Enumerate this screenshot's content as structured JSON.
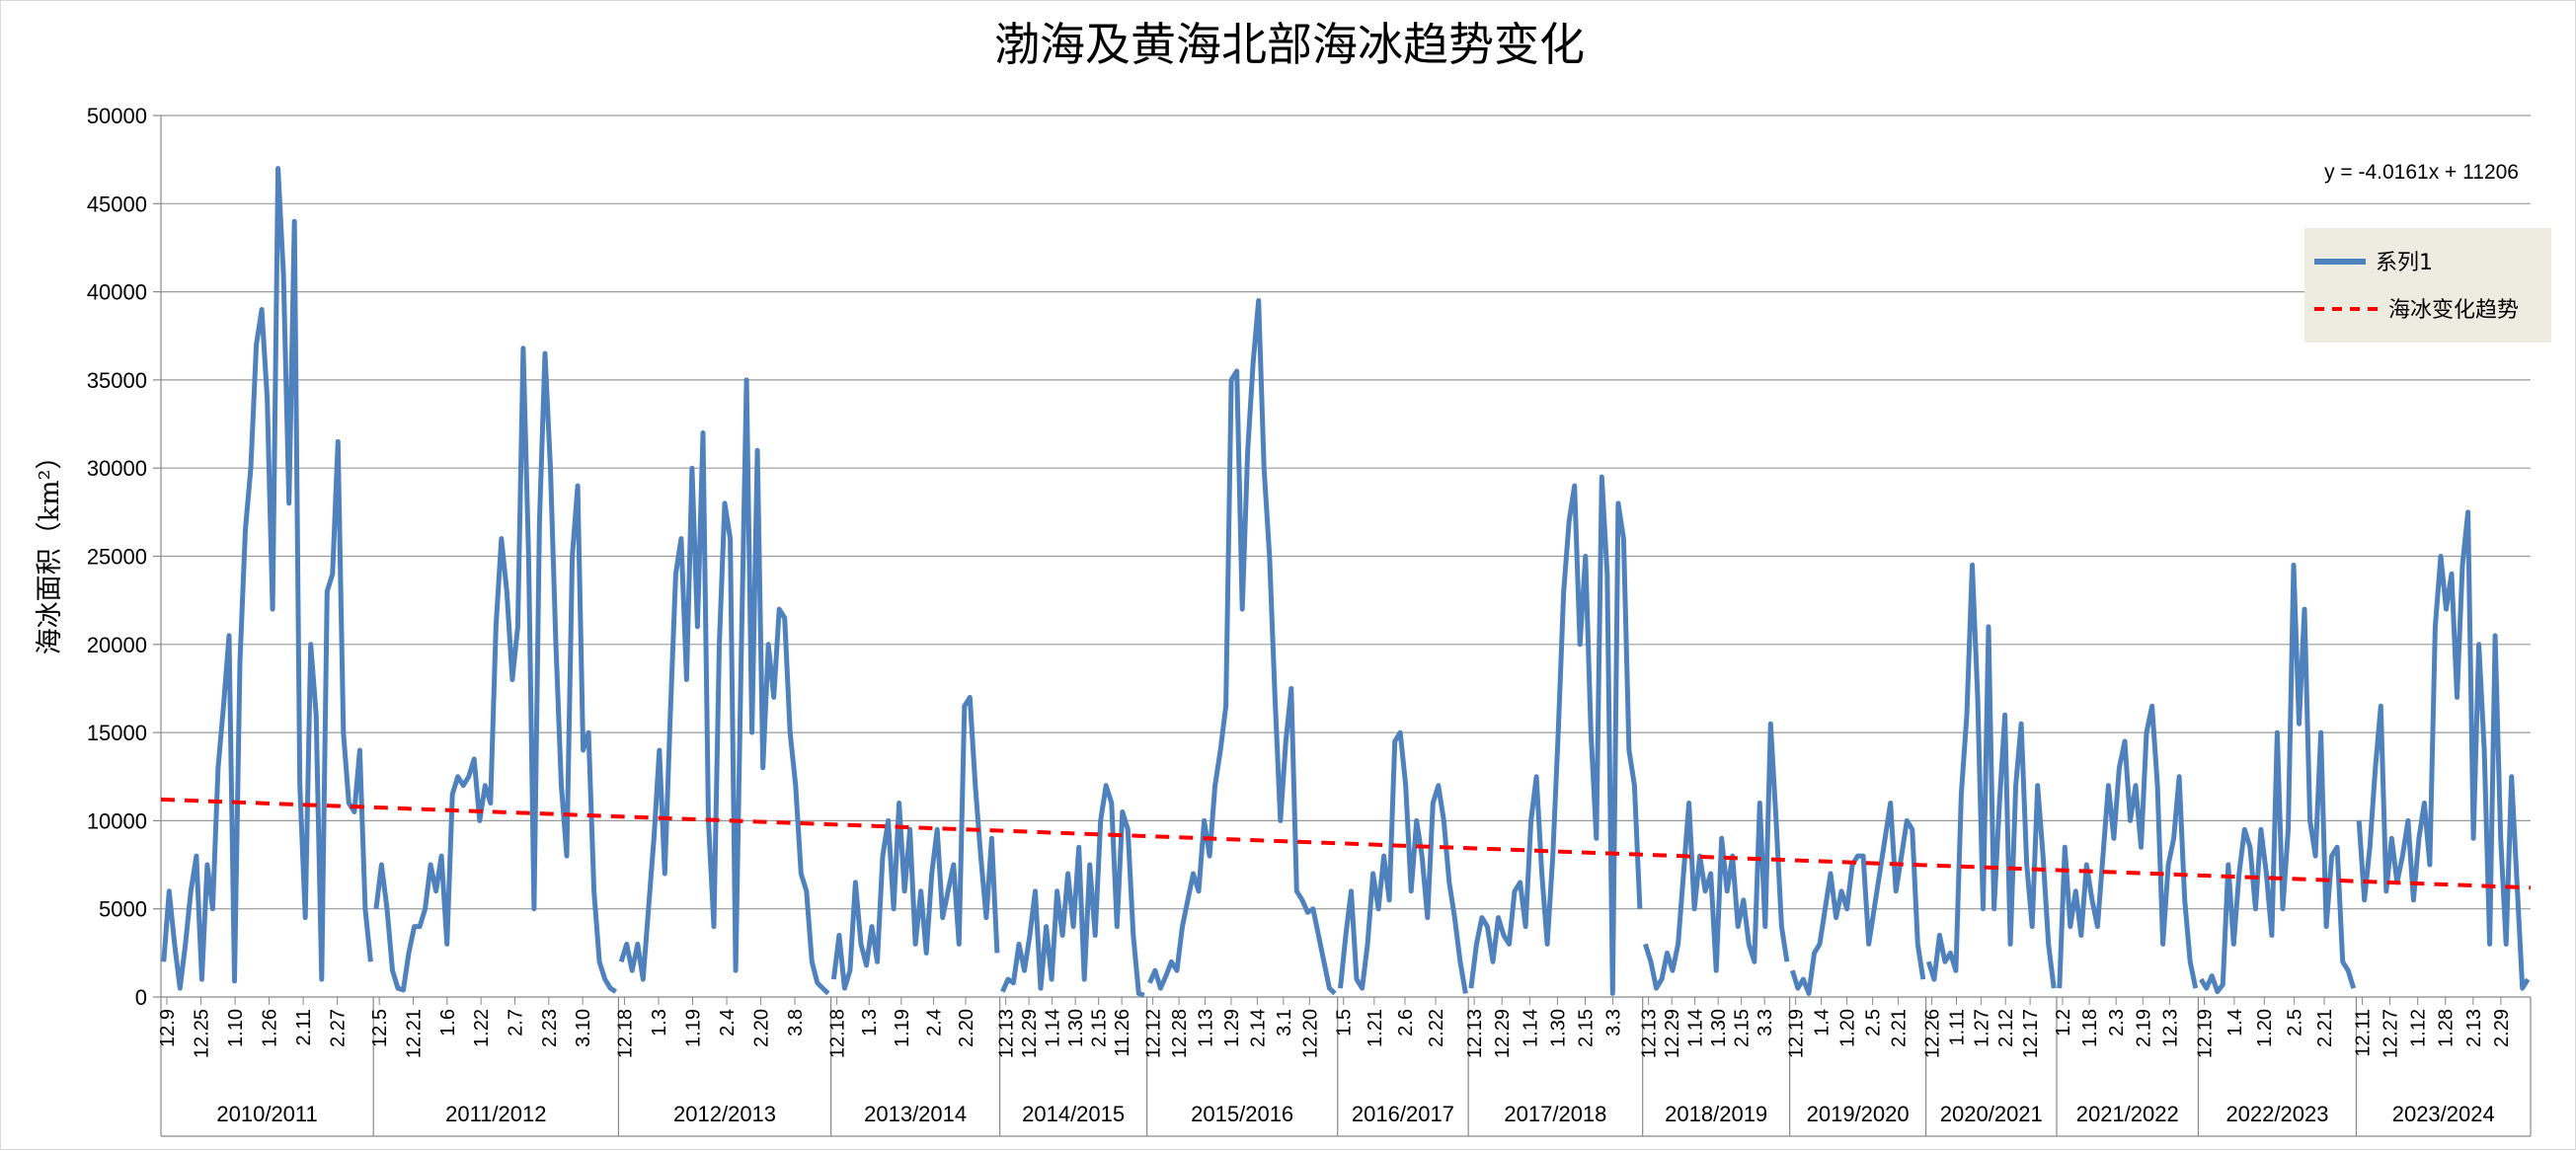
{
  "chart_data": {
    "type": "line",
    "title": "渤海及黄海北部海冰趋势变化",
    "xlabel": "",
    "ylabel": "海冰面积（km²）",
    "ylim": [
      0,
      50000
    ],
    "yticks": [
      0,
      5000,
      10000,
      15000,
      20000,
      25000,
      30000,
      35000,
      40000,
      45000,
      50000
    ],
    "grid": true,
    "legend_position": "right",
    "colors": {
      "series": "#4f81bd",
      "trend": "#ff0000",
      "legend_bg": "#eeece1"
    },
    "series": [
      {
        "name": "系列1",
        "segments": [
          {
            "season": "2010/2011",
            "points": [
              2000,
              6000,
              3000,
              500,
              3000,
              6000,
              8000,
              1000,
              7500,
              5000,
              13000,
              16500,
              20500,
              900,
              19000,
              26500,
              30000,
              37000,
              39000,
              34000,
              22000,
              47000,
              41000,
              28000,
              44000,
              12000,
              4500,
              20000,
              16000,
              1000,
              23000,
              24000,
              31500,
              15000,
              11000,
              10500,
              14000,
              5000,
              2000
            ]
          },
          {
            "season": "2011/2012",
            "points": [
              5000,
              7500,
              5000,
              1500,
              500,
              400,
              2500,
              4000,
              4000,
              5000,
              7500,
              6000,
              8000,
              3000,
              11500,
              12500,
              12000,
              12500,
              13500,
              10000,
              12000,
              11000,
              21000,
              26000,
              23000,
              18000,
              21000,
              36800,
              25000,
              5000,
              27000,
              36500,
              30000,
              20000,
              12000,
              8000,
              25000,
              29000,
              14000,
              15000,
              6000,
              2000,
              1000,
              500,
              300
            ]
          },
          {
            "season": "2012/2013",
            "points": [
              2000,
              3000,
              1500,
              3000,
              1000,
              5000,
              9000,
              14000,
              7000,
              16000,
              24000,
              26000,
              18000,
              30000,
              21000,
              32000,
              10000,
              4000,
              20000,
              28000,
              26000,
              1500,
              19000,
              35000,
              15000,
              31000,
              13000,
              20000,
              17000,
              22000,
              21500,
              15000,
              12000,
              7000,
              6000,
              2000,
              800,
              500,
              200
            ]
          },
          {
            "season": "2013/2014",
            "points": [
              1000,
              3500,
              500,
              1500,
              6500,
              3000,
              1800,
              4000,
              2000,
              8000,
              10000,
              5000,
              11000,
              6000,
              9500,
              3000,
              6000,
              2500,
              7000,
              9500,
              4500,
              6000,
              7500,
              3000,
              16500,
              17000,
              12000,
              8000,
              4500,
              9000,
              2500
            ]
          },
          {
            "season": "2014/2015",
            "points": [
              300,
              1000,
              800,
              3000,
              1500,
              3500,
              6000,
              500,
              4000,
              1000,
              6000,
              3500,
              7000,
              4000,
              8500,
              1000,
              7500,
              3500,
              10000,
              12000,
              11000,
              4000,
              10500,
              9500,
              3500,
              200,
              100
            ]
          },
          {
            "season": "2015/2016",
            "points": [
              800,
              1500,
              500,
              1200,
              2000,
              1500,
              4000,
              5500,
              7000,
              6000,
              10000,
              8000,
              12000,
              14000,
              16500,
              35000,
              35500,
              22000,
              31000,
              36000,
              39500,
              30000,
              25000,
              17000,
              10000,
              14500,
              17500,
              6000,
              5500,
              4800,
              5000,
              3500,
              2000,
              500,
              200
            ]
          },
          {
            "season": "2016/2017",
            "points": [
              500,
              3500,
              6000,
              1000,
              500,
              3000,
              7000,
              5000,
              8000,
              5500,
              14500,
              15000,
              12000,
              6000,
              10000,
              8000,
              4500,
              11000,
              12000,
              10000,
              6500,
              4500,
              2000,
              200
            ]
          },
          {
            "season": "2017/2018",
            "points": [
              500,
              3000,
              4500,
              4000,
              2000,
              4500,
              3500,
              3000,
              6000,
              6500,
              4000,
              10000,
              12500,
              7000,
              3000,
              8000,
              15000,
              23000,
              27000,
              29000,
              20000,
              25000,
              15000,
              9000,
              29500,
              24000,
              200,
              28000,
              26000,
              14000,
              12000,
              5000
            ]
          },
          {
            "season": "2018/2019",
            "points": [
              3000,
              2000,
              500,
              1000,
              2500,
              1500,
              3000,
              7000,
              11000,
              5000,
              8000,
              6000,
              7000,
              1500,
              9000,
              6000,
              8000,
              4000,
              5500,
              3000,
              2000,
              11000,
              4000,
              15500,
              10000,
              4000,
              2000
            ]
          },
          {
            "season": "2019/2020",
            "points": [
              1500,
              500,
              1000,
              200,
              2500,
              3000,
              5000,
              7000,
              4500,
              6000,
              5000,
              7500,
              8000,
              8000,
              3000,
              5000,
              7000,
              9000,
              11000,
              6000,
              8000,
              10000,
              9500,
              3000,
              1000
            ]
          },
          {
            "season": "2020/2021",
            "points": [
              2000,
              1000,
              3500,
              2000,
              2500,
              1500,
              11500,
              16000,
              24500,
              17000,
              5000,
              21000,
              5000,
              11000,
              16000,
              3000,
              12000,
              15500,
              7500,
              4000,
              12000,
              8000,
              3000,
              500
            ]
          },
          {
            "season": "2021/2022",
            "points": [
              500,
              8500,
              4000,
              6000,
              3500,
              7500,
              5500,
              4000,
              8000,
              12000,
              9000,
              13000,
              14500,
              10000,
              12000,
              8500,
              15000,
              16500,
              12000,
              3000,
              7500,
              9000,
              12500,
              5500,
              2000,
              500
            ]
          },
          {
            "season": "2022/2023",
            "points": [
              1000,
              500,
              1200,
              300,
              700,
              7500,
              3000,
              7000,
              9500,
              8500,
              5000,
              9500,
              7000,
              3500,
              15000,
              5000,
              9500,
              24500,
              15500,
              22000,
              10000,
              8000,
              15000,
              4000,
              8000,
              8500,
              2000,
              1500,
              500
            ]
          },
          {
            "season": "2023/2024",
            "points": [
              10000,
              5500,
              8500,
              13000,
              16500,
              6000,
              9000,
              6500,
              8000,
              10000,
              5500,
              9000,
              11000,
              7500,
              21000,
              25000,
              22000,
              24000,
              17000,
              24500,
              27500,
              9000,
              20000,
              14000,
              3000,
              20500,
              9000,
              3000,
              12500,
              6500,
              500,
              1000
            ]
          }
        ]
      },
      {
        "name": "海冰变化趋势",
        "type": "trendline",
        "style": "dashed",
        "equation": "y = -4.0161x + 11206",
        "start": 11206,
        "end": 6200
      }
    ],
    "x_ticks": [
      {
        "season": "2010/2011",
        "labels": [
          "12.9",
          "12.25",
          "1.10",
          "1.26",
          "2.11",
          "2.27"
        ]
      },
      {
        "season": "2011/2012",
        "labels": [
          "12.5",
          "12.21",
          "1.6",
          "1.22",
          "2.7",
          "2.23",
          "3.10"
        ]
      },
      {
        "season": "2012/2013",
        "labels": [
          "12.18",
          "1.3",
          "1.19",
          "2.4",
          "2.20",
          "3.8"
        ]
      },
      {
        "season": "2013/2014",
        "labels": [
          "12.18",
          "1.3",
          "1.19",
          "2.4",
          "2.20"
        ]
      },
      {
        "season": "2014/2015",
        "labels": [
          "12.13",
          "12.29",
          "1.14",
          "1.30",
          "2.15",
          "11.26"
        ]
      },
      {
        "season": "2015/2016",
        "labels": [
          "12.12",
          "12.28",
          "1.13",
          "1.29",
          "2.14",
          "3.1",
          "12.20"
        ]
      },
      {
        "season": "2016/2017",
        "labels": [
          "1.5",
          "1.21",
          "2.6",
          "2.22"
        ]
      },
      {
        "season": "2017/2018",
        "labels": [
          "12.13",
          "12.29",
          "1.14",
          "1.30",
          "2.15",
          "3.3"
        ]
      },
      {
        "season": "2018/2019",
        "labels": [
          "12.13",
          "12.29",
          "1.14",
          "1.30",
          "2.15",
          "3.3"
        ]
      },
      {
        "season": "2019/2020",
        "labels": [
          "12.19",
          "1.4",
          "1.20",
          "2.5",
          "2.21"
        ]
      },
      {
        "season": "2020/2021",
        "labels": [
          "12.26",
          "1.11",
          "1.27",
          "2.12",
          "12.17"
        ]
      },
      {
        "season": "2021/2022",
        "labels": [
          "1.2",
          "1.18",
          "2.3",
          "2.19",
          "12.3"
        ]
      },
      {
        "season": "2022/2023",
        "labels": [
          "12.19",
          "1.4",
          "1.20",
          "2.5",
          "2.21"
        ]
      },
      {
        "season": "2023/2024",
        "labels": [
          "12.11",
          "12.27",
          "1.12",
          "1.28",
          "2.13",
          "2.29"
        ]
      }
    ]
  }
}
